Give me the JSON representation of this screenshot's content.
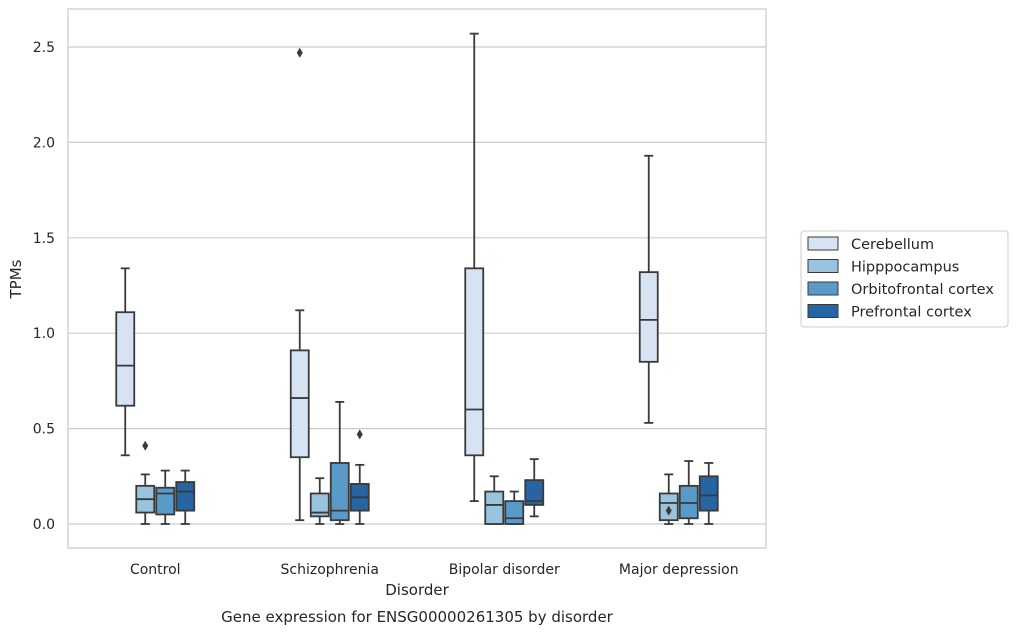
{
  "chart_data": {
    "type": "boxplot",
    "title": "",
    "caption": "Gene expression for ENSG00000261305 by disorder",
    "xlabel": "Disorder",
    "ylabel": "TPMs",
    "ylim": [
      -0.12,
      2.7
    ],
    "yticks": [
      {
        "value": 0.0,
        "label": "0.0"
      },
      {
        "value": 0.5,
        "label": "0.5"
      },
      {
        "value": 1.0,
        "label": "1.0"
      },
      {
        "value": 1.5,
        "label": "1.5"
      },
      {
        "value": 2.0,
        "label": "2.0"
      },
      {
        "value": 2.5,
        "label": "2.5"
      }
    ],
    "grid": "horizontal",
    "legend_position": "right",
    "categories": [
      "Control",
      "Schizophrenia",
      "Bipolar disorder",
      "Major depression"
    ],
    "series": [
      {
        "name": "Cerebellum",
        "color": "#d5e3f2",
        "boxes": [
          {
            "whislo": 0.36,
            "q1": 0.62,
            "med": 0.83,
            "q3": 1.11,
            "whishi": 1.34,
            "fliers": []
          },
          {
            "whislo": 0.02,
            "q1": 0.35,
            "med": 0.66,
            "q3": 0.91,
            "whishi": 1.12,
            "fliers": [
              2.47
            ]
          },
          {
            "whislo": 0.12,
            "q1": 0.36,
            "med": 0.6,
            "q3": 1.34,
            "whishi": 2.57,
            "fliers": []
          },
          {
            "whislo": 0.53,
            "q1": 0.85,
            "med": 1.07,
            "q3": 1.32,
            "whishi": 1.93,
            "fliers": []
          }
        ]
      },
      {
        "name": "Hipppocampus",
        "color": "#9ac4de",
        "boxes": [
          {
            "whislo": 0.0,
            "q1": 0.06,
            "med": 0.13,
            "q3": 0.2,
            "whishi": 0.26,
            "fliers": [
              0.41
            ]
          },
          {
            "whislo": 0.0,
            "q1": 0.04,
            "med": 0.06,
            "q3": 0.16,
            "whishi": 0.24,
            "fliers": []
          },
          {
            "whislo": 0.0,
            "q1": 0.0,
            "med": 0.1,
            "q3": 0.17,
            "whishi": 0.25,
            "fliers": []
          },
          {
            "whislo": 0.0,
            "q1": 0.02,
            "med": 0.11,
            "q3": 0.16,
            "whishi": 0.26,
            "fliers": [
              0.07
            ]
          }
        ]
      },
      {
        "name": "Orbitofrontal cortex",
        "color": "#5a9ac9",
        "boxes": [
          {
            "whislo": 0.0,
            "q1": 0.05,
            "med": 0.16,
            "q3": 0.19,
            "whishi": 0.28,
            "fliers": []
          },
          {
            "whislo": 0.0,
            "q1": 0.02,
            "med": 0.07,
            "q3": 0.32,
            "whishi": 0.64,
            "fliers": []
          },
          {
            "whislo": 0.0,
            "q1": 0.0,
            "med": 0.03,
            "q3": 0.12,
            "whishi": 0.17,
            "fliers": []
          },
          {
            "whislo": 0.0,
            "q1": 0.03,
            "med": 0.11,
            "q3": 0.2,
            "whishi": 0.33,
            "fliers": []
          }
        ]
      },
      {
        "name": "Prefrontal cortex",
        "color": "#2664a3",
        "boxes": [
          {
            "whislo": 0.0,
            "q1": 0.07,
            "med": 0.17,
            "q3": 0.22,
            "whishi": 0.28,
            "fliers": []
          },
          {
            "whislo": 0.0,
            "q1": 0.07,
            "med": 0.14,
            "q3": 0.21,
            "whishi": 0.31,
            "fliers": [
              0.47
            ]
          },
          {
            "whislo": 0.04,
            "q1": 0.1,
            "med": 0.12,
            "q3": 0.23,
            "whishi": 0.34,
            "fliers": []
          },
          {
            "whislo": 0.0,
            "q1": 0.07,
            "med": 0.15,
            "q3": 0.25,
            "whishi": 0.32,
            "fliers": []
          }
        ]
      }
    ]
  }
}
